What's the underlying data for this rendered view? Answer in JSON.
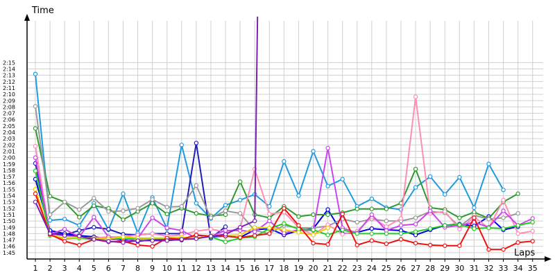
{
  "chart_data": {
    "type": "line",
    "ylabel": "Time",
    "xlabel": "Laps",
    "x": [
      1,
      2,
      3,
      4,
      5,
      6,
      7,
      8,
      9,
      10,
      11,
      12,
      13,
      14,
      15,
      16,
      17,
      18,
      19,
      20,
      21,
      22,
      23,
      24,
      25,
      26,
      27,
      28,
      29,
      30,
      31,
      32,
      33,
      34,
      35
    ],
    "x_ticks": [
      "1",
      "2",
      "3",
      "4",
      "5",
      "6",
      "7",
      "8",
      "9",
      "10",
      "11",
      "12",
      "13",
      "14",
      "15",
      "16",
      "17",
      "18",
      "19",
      "20",
      "21",
      "22",
      "23",
      "24",
      "25",
      "26",
      "27",
      "28",
      "29",
      "30",
      "31",
      "32",
      "33",
      "34",
      "35"
    ],
    "y_ticks": [
      "1:45",
      "1:46",
      "1:47",
      "1:48",
      "1:49",
      "1:50",
      "1:51",
      "1:52",
      "1:53",
      "1:54",
      "1:55",
      "1:56",
      "1:57",
      "1:58",
      "1:59",
      "2:00",
      "2:01",
      "2:02",
      "2:03",
      "2:04",
      "2:05",
      "2:06",
      "2:07",
      "2:08",
      "2:09",
      "2:10",
      "2:11",
      "2:12",
      "2:13",
      "2:14",
      "2:15"
    ],
    "ylim_seconds": [
      104,
      136
    ],
    "grid": true,
    "colors": {
      "axis": "#000000",
      "grid": "#d0d0d0"
    },
    "series": [
      {
        "color": "#1e9be0",
        "values": [
          133.2,
          110.1,
          110.3,
          109.3,
          112.8,
          108.6,
          114.3,
          108.1,
          113.7,
          108.8,
          122.0,
          112.8,
          110.4,
          112.5,
          113.3,
          114.2,
          112.3,
          119.4,
          114.0,
          121.0,
          115.5,
          116.6,
          112.3,
          113.5,
          112.1,
          111.8,
          115.3,
          117.0,
          114.2,
          116.9,
          112.1,
          119.0,
          114.9,
          null,
          null
        ]
      },
      {
        "color": "#1f1fb8",
        "values": [
          119.1,
          108.2,
          107.8,
          108.5,
          109.0,
          108.7,
          107.9,
          107.8,
          108.0,
          108.0,
          108.0,
          122.3,
          107.3,
          109.1,
          null,
          null,
          null,
          null,
          null,
          null,
          null,
          null,
          null,
          null,
          null,
          null,
          null,
          null,
          null,
          null,
          null,
          null,
          null,
          null,
          null
        ]
      },
      {
        "color": "#0000e0",
        "values": [
          116.6,
          108.5,
          108.0,
          107.7,
          107.5,
          107.2,
          107.0,
          106.8,
          107.0,
          107.0,
          107.0,
          107.8,
          107.5,
          107.6,
          107.4,
          108.6,
          108.8,
          107.8,
          108.5,
          108.8,
          111.8,
          108.0,
          108.2,
          108.8,
          108.6,
          108.5,
          107.8,
          108.6,
          109.3,
          109.5,
          109.2,
          110.7,
          108.6,
          109.1,
          null
        ]
      },
      {
        "color": "#2e9a2e",
        "values": [
          124.6,
          113.9,
          113.0,
          110.6,
          112.4,
          112.0,
          110.2,
          111.5,
          112.8,
          111.1,
          112.0,
          111.2,
          110.8,
          111.0,
          116.2,
          111.0,
          110.5,
          112.3,
          110.7,
          111.0,
          111.0,
          111.3,
          111.9,
          111.9,
          111.9,
          112.8,
          118.2,
          112.1,
          111.8,
          110.5,
          111.4,
          110.4,
          113.0,
          114.3,
          null
        ]
      },
      {
        "color": "#999999",
        "values": [
          128.1,
          111.0,
          113.0,
          111.8,
          113.6,
          111.5,
          111.6,
          112.0,
          113.4,
          112.2,
          112.3,
          115.6,
          110.5,
          111.6,
          111.2,
          108.5,
          108.0,
          109.3,
          108.9,
          108.9,
          109.2,
          110.3,
          109.8,
          110.3,
          110.0,
          110.0,
          110.5,
          111.5,
          111.3,
          109.1,
          110.9,
          110.3,
          110.5,
          111.2,
          null
        ]
      },
      {
        "color": "#ff8db5",
        "values": [
          121.8,
          107.8,
          107.1,
          107.4,
          107.3,
          107.5,
          107.5,
          107.8,
          108.0,
          107.6,
          107.8,
          108.4,
          108.7,
          108.3,
          108.8,
          118.2,
          111.1,
          111.4,
          109.0,
          107.8,
          109.4,
          107.9,
          108.4,
          110.6,
          109.1,
          110.4,
          129.6,
          111.2,
          111.5,
          108.7,
          110.6,
          108.9,
          113.3,
          108.0,
          108.4
        ]
      },
      {
        "color": "#cc44ee",
        "values": [
          120.0,
          107.9,
          108.7,
          107.5,
          110.6,
          107.5,
          106.7,
          107.3,
          110.5,
          108.9,
          108.5,
          107.3,
          107.6,
          108.5,
          108.5,
          108.3,
          110.0,
          108.1,
          108.6,
          108.5,
          121.5,
          108.9,
          108.1,
          111.0,
          108.5,
          109.3,
          109.5,
          111.6,
          109.0,
          109.3,
          109.8,
          109.0,
          111.6,
          109.3,
          110.4
        ]
      },
      {
        "color": "#22cc22",
        "values": [
          117.9,
          107.7,
          107.3,
          107.3,
          107.1,
          107.2,
          107.2,
          107.2,
          107.2,
          107.2,
          107.2,
          107.3,
          107.5,
          106.7,
          107.3,
          107.5,
          108.8,
          109.6,
          108.7,
          108.6,
          107.8,
          108.6,
          108.0,
          108.0,
          108.0,
          108.0,
          108.3,
          108.8,
          109.3,
          109.4,
          108.8,
          108.9,
          108.8,
          109.3,
          109.8
        ]
      },
      {
        "color": "#e8d000",
        "values": [
          115.0,
          107.8,
          107.3,
          107.4,
          107.3,
          107.2,
          107.5,
          107.3,
          107.3,
          107.3,
          107.4,
          107.3,
          107.7,
          107.7,
          107.8,
          109.0,
          108.9,
          108.6,
          108.2,
          107.8,
          108.9,
          null,
          null,
          null,
          null,
          null,
          null,
          null,
          null,
          null,
          null,
          null,
          null,
          null,
          null
        ]
      },
      {
        "color": "#ee1111",
        "values": [
          114.3,
          107.9,
          106.8,
          106.2,
          107.1,
          106.7,
          106.8,
          106.2,
          106.0,
          107.3,
          107.1,
          107.8,
          107.6,
          107.6,
          107.4,
          107.7,
          108.0,
          112.0,
          109.3,
          106.5,
          106.3,
          111.1,
          106.2,
          106.9,
          106.4,
          107.1,
          106.5,
          106.2,
          106.1,
          106.1,
          110.5,
          105.5,
          105.5,
          106.6,
          106.8
        ]
      },
      {
        "color": "#7a1fb0",
        "values": [
          113.0,
          108.0,
          107.7,
          107.6,
          107.1,
          106.8,
          106.6,
          106.9,
          106.9,
          106.9,
          107.1,
          107.2,
          107.6,
          107.9,
          109.0,
          110.0,
          null,
          null,
          null,
          null,
          null,
          null,
          null,
          null,
          null,
          null,
          null,
          null,
          null,
          null,
          null,
          null,
          null,
          null,
          null
        ],
        "offscale_after": 16
      }
    ]
  }
}
